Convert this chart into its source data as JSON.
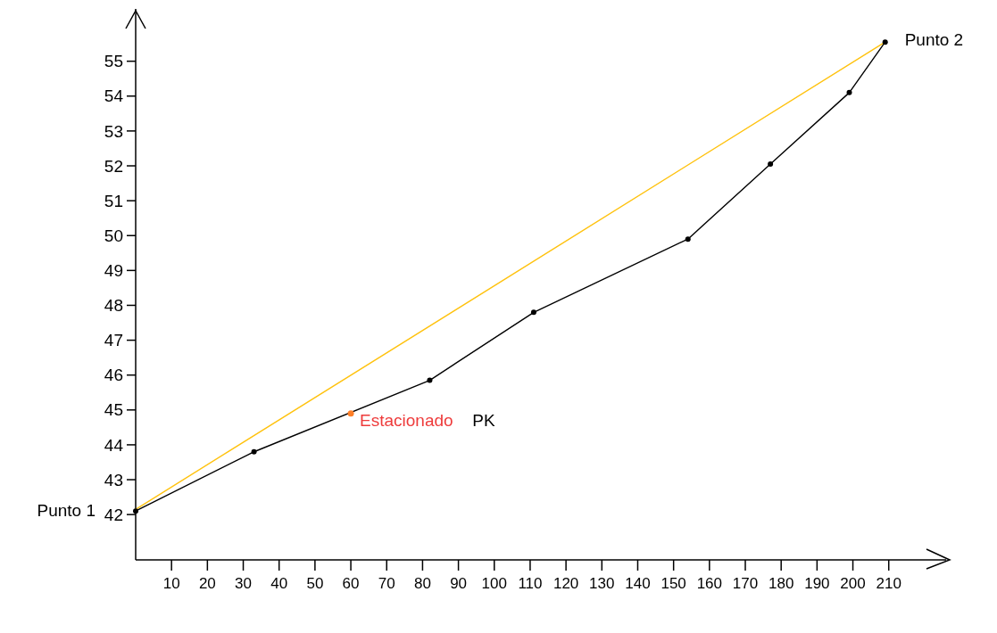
{
  "chart_data": {
    "type": "line",
    "marker": "circle",
    "line_style": "solid",
    "grid": false,
    "xlim": [
      0,
      226
    ],
    "ylim": [
      40.7,
      56.5
    ],
    "xticks": [
      10,
      20,
      30,
      40,
      50,
      60,
      70,
      80,
      90,
      100,
      110,
      120,
      130,
      140,
      150,
      160,
      170,
      180,
      190,
      200,
      210
    ],
    "yticks": [
      42,
      43,
      44,
      45,
      46,
      47,
      48,
      49,
      50,
      51,
      52,
      53,
      54,
      55
    ],
    "series": [
      {
        "type": "line",
        "marker": "none",
        "color": "#ffc20e",
        "x": [
          0,
          209
        ],
        "values": [
          42.15,
          55.55
        ]
      },
      {
        "type": "line",
        "color": "#000000",
        "x": [
          0,
          33,
          82,
          111,
          154,
          177,
          199,
          209
        ],
        "values": [
          42.1,
          43.8,
          45.85,
          47.8,
          49.9,
          52.05,
          54.1,
          55.55
        ]
      },
      {
        "type": "scatter",
        "color": "#ff7f27",
        "x": [
          60
        ],
        "values": [
          44.9
        ]
      }
    ],
    "annotations": [
      {
        "text": "Punto 1",
        "x": 0,
        "y": 42.1
      },
      {
        "text": "Punto 2",
        "x": 209,
        "y": 55.55
      },
      {
        "text": "Estacionado",
        "x": 60,
        "y": 44.9
      },
      "PK"
    ]
  }
}
